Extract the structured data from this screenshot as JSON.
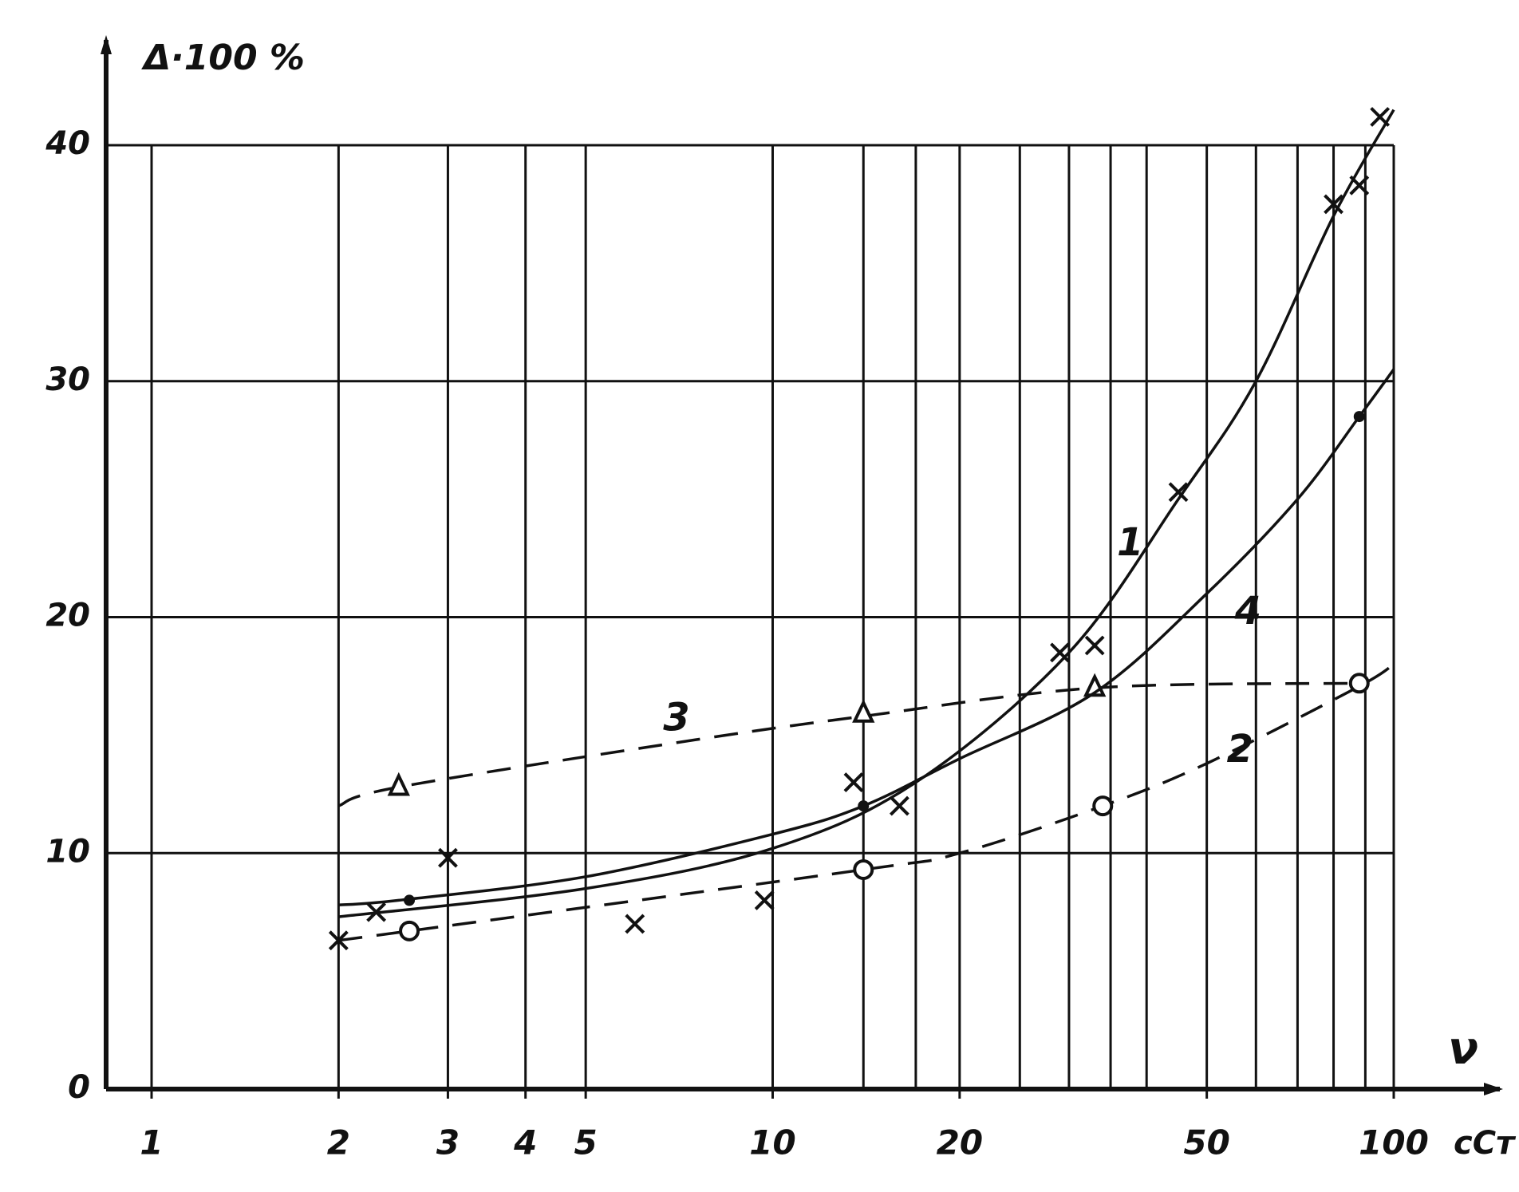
{
  "chart_data": {
    "type": "line",
    "y_label": "Δ·100 %",
    "x_label": "ν",
    "x_unit": "cCт",
    "xscale": "log",
    "xlim": [
      1,
      100
    ],
    "ylim": [
      0,
      40
    ],
    "xticks": [
      1,
      2,
      3,
      4,
      5,
      10,
      20,
      50,
      100
    ],
    "xgrid": [
      1,
      2,
      3,
      4,
      5,
      10,
      14,
      17,
      20,
      25,
      30,
      35,
      40,
      50,
      60,
      70,
      80,
      90,
      100
    ],
    "yticks": [
      0,
      10,
      20,
      30,
      40
    ],
    "grid": true,
    "series": [
      {
        "name": "1",
        "color": "#111111",
        "dashed": false,
        "marker": "cross",
        "x": [
          2,
          5,
          10,
          17,
          30,
          45,
          60,
          80,
          100
        ],
        "values": [
          7.3,
          8.5,
          10.2,
          13,
          18.5,
          25,
          30,
          37,
          41.5
        ],
        "marker_x": [
          2,
          2.3,
          3,
          6,
          9.7,
          13.5,
          16,
          29,
          33,
          45,
          80,
          88,
          95
        ],
        "marker_values": [
          6.3,
          7.5,
          9.8,
          7,
          8,
          13,
          12,
          18.5,
          18.8,
          25.3,
          37.5,
          38.3,
          41.2
        ]
      },
      {
        "name": "2",
        "color": "#111111",
        "dashed": true,
        "marker": "circle",
        "x": [
          2,
          2.6,
          14,
          20,
          34,
          50,
          87,
          100
        ],
        "values": [
          6.3,
          6.7,
          9.3,
          10,
          12,
          13.8,
          17,
          18
        ],
        "marker_x": [
          2.6,
          14,
          34,
          88
        ],
        "marker_values": [
          6.7,
          9.3,
          12,
          17.2
        ]
      },
      {
        "name": "3",
        "color": "#111111",
        "dashed": true,
        "marker": "triangle",
        "x": [
          2,
          2.5,
          7.5,
          14,
          33,
          87
        ],
        "values": [
          12,
          12.8,
          14.8,
          15.8,
          17,
          17.2
        ],
        "marker_x": [
          2.5,
          14,
          33
        ],
        "marker_values": [
          12.8,
          15.9,
          17
        ]
      },
      {
        "name": "4",
        "color": "#111111",
        "dashed": false,
        "marker": "dot",
        "x": [
          2,
          2.5,
          5,
          10,
          14,
          20,
          33,
          50,
          70,
          88,
          100
        ],
        "values": [
          7.8,
          8,
          9,
          10.8,
          12,
          14,
          16.8,
          21,
          25,
          28.5,
          30.5
        ],
        "marker_x": [
          2.6,
          14,
          88
        ],
        "marker_values": [
          8,
          12,
          28.5
        ]
      }
    ]
  }
}
